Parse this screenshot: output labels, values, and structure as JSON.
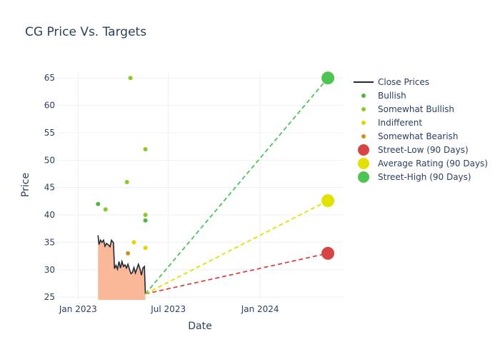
{
  "chart_data": {
    "type": "line",
    "title": "CG Price Vs. Targets",
    "xlabel": "Date",
    "ylabel": "Price",
    "xlim": [
      "2022-11-20",
      "2024-06-15"
    ],
    "ylim": [
      24.5,
      66.2
    ],
    "x_ticks": [
      {
        "date": "2023-01-01",
        "label": "Jan 2023"
      },
      {
        "date": "2023-07-01",
        "label": "Jul 2023"
      },
      {
        "date": "2024-01-01",
        "label": "Jan 2024"
      }
    ],
    "y_ticks": [
      25,
      30,
      35,
      40,
      45,
      50,
      55,
      60,
      65
    ],
    "grid": true,
    "legend_position": "right",
    "series": [
      {
        "name": "Close Prices",
        "kind": "line",
        "color": "#1f2a36",
        "fill": "#fbb898",
        "points": [
          [
            "2023-02-10",
            36.3
          ],
          [
            "2023-02-12",
            34.6
          ],
          [
            "2023-02-15",
            35.4
          ],
          [
            "2023-02-18",
            35.0
          ],
          [
            "2023-02-21",
            35.4
          ],
          [
            "2023-02-24",
            34.3
          ],
          [
            "2023-02-27",
            34.8
          ],
          [
            "2023-03-02",
            34.6
          ],
          [
            "2023-03-06",
            34.2
          ],
          [
            "2023-03-09",
            35.4
          ],
          [
            "2023-03-13",
            34.9
          ],
          [
            "2023-03-15",
            30.2
          ],
          [
            "2023-03-18",
            30.8
          ],
          [
            "2023-03-21",
            30.1
          ],
          [
            "2023-03-24",
            31.5
          ],
          [
            "2023-03-27",
            30.3
          ],
          [
            "2023-03-30",
            31.5
          ],
          [
            "2023-04-02",
            30.6
          ],
          [
            "2023-04-05",
            30.9
          ],
          [
            "2023-04-08",
            30.3
          ],
          [
            "2023-04-11",
            31.0
          ],
          [
            "2023-04-14",
            30.1
          ],
          [
            "2023-04-17",
            29.3
          ],
          [
            "2023-04-20",
            29.5
          ],
          [
            "2023-04-23",
            30.4
          ],
          [
            "2023-04-26",
            29.4
          ],
          [
            "2023-04-29",
            30.2
          ],
          [
            "2023-05-02",
            31.0
          ],
          [
            "2023-05-05",
            30.2
          ],
          [
            "2023-05-08",
            29.0
          ],
          [
            "2023-05-11",
            30.3
          ],
          [
            "2023-05-14",
            30.6
          ],
          [
            "2023-05-16",
            25.6
          ]
        ]
      },
      {
        "name": "Bullish",
        "kind": "markers",
        "color": "#53b543",
        "points": [
          [
            "2023-02-10",
            42
          ],
          [
            "2023-05-16",
            39
          ]
        ]
      },
      {
        "name": "Somewhat Bullish",
        "kind": "markers",
        "color": "#8ac926",
        "points": [
          [
            "2023-02-25",
            41
          ],
          [
            "2023-04-09",
            46
          ],
          [
            "2023-04-16",
            65
          ],
          [
            "2023-05-16",
            52
          ],
          [
            "2023-05-16",
            40
          ]
        ]
      },
      {
        "name": "Indifferent",
        "kind": "markers",
        "color": "#e2d500",
        "points": [
          [
            "2023-04-23",
            35
          ],
          [
            "2023-05-16",
            34
          ]
        ]
      },
      {
        "name": "Somewhat Bearish",
        "kind": "markers",
        "color": "#d4901d",
        "points": [
          [
            "2023-04-11",
            33
          ]
        ]
      },
      {
        "name": "Street-Low (90 Days)",
        "kind": "target",
        "color": "#d64545",
        "start": [
          "2023-05-16",
          25.6
        ],
        "end": [
          "2024-05-16",
          33
        ]
      },
      {
        "name": "Average Rating (90 Days)",
        "kind": "target",
        "color": "#e2e200",
        "start": [
          "2023-05-16",
          25.6
        ],
        "end": [
          "2024-05-16",
          42.6
        ]
      },
      {
        "name": "Street-High (90 Days)",
        "kind": "target",
        "color": "#4dc453",
        "start": [
          "2023-05-16",
          25.6
        ],
        "end": [
          "2024-05-16",
          65
        ]
      }
    ]
  }
}
